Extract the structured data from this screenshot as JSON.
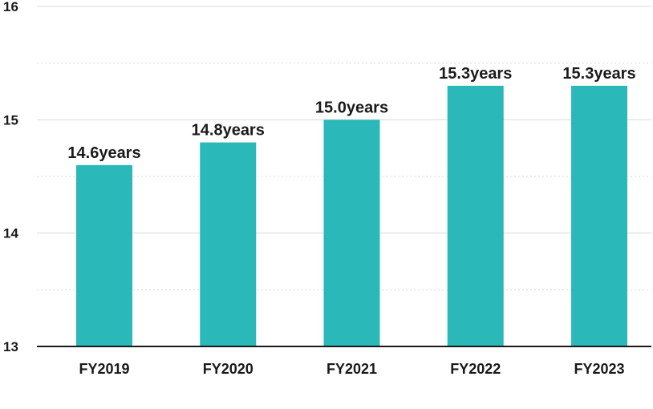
{
  "chart_data": {
    "type": "bar",
    "categories": [
      "FY2019",
      "FY2020",
      "FY2021",
      "FY2022",
      "FY2023"
    ],
    "values": [
      14.6,
      14.8,
      15.0,
      15.3,
      15.3
    ],
    "data_labels": [
      "14.6years",
      "14.8years",
      "15.0years",
      "15.3years",
      "15.3years"
    ],
    "y_ticks": [
      "13",
      "14",
      "15",
      "16"
    ],
    "ylim": [
      13,
      16
    ],
    "grid": true,
    "legend": "none",
    "colors": {
      "bar": "#2bb8b8",
      "grid_major": "#d9d9d9",
      "grid_minor": "#d9d9d9",
      "axis": "#1a1a1a",
      "text": "#1a1a1a"
    }
  }
}
